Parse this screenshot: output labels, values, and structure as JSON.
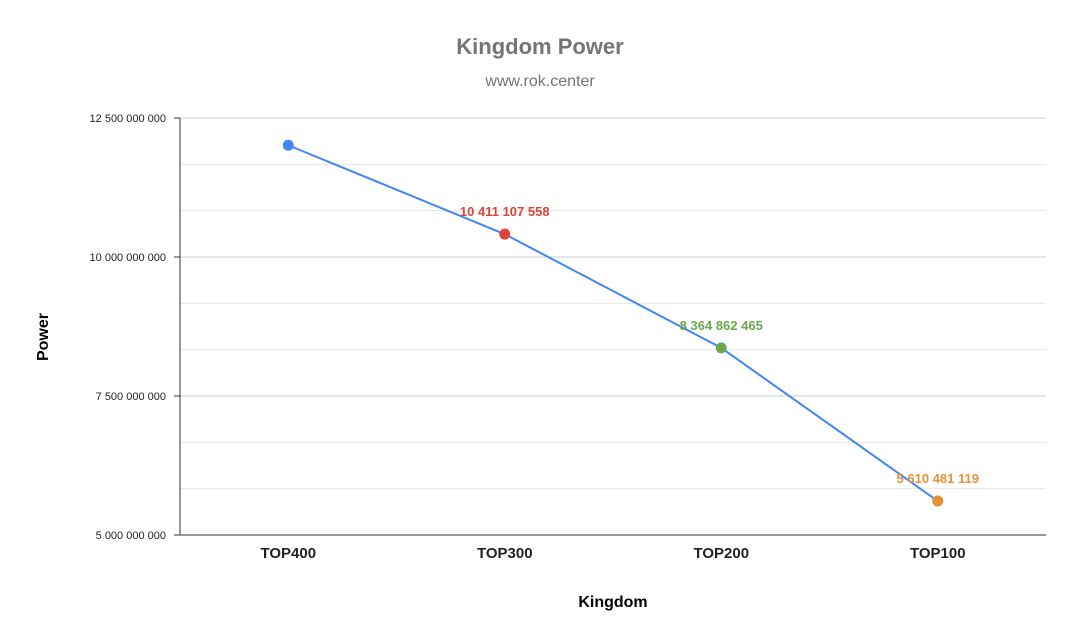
{
  "chart_data": {
    "type": "line",
    "title": "Kingdom Power",
    "subtitle": "www.rok.center",
    "xlabel": "Kingdom",
    "ylabel": "Power",
    "categories": [
      "TOP400",
      "TOP300",
      "TOP200",
      "TOP100"
    ],
    "series": [
      {
        "values": [
          12010000000,
          10411107558,
          8364862465,
          5610481119
        ],
        "line_color": "#4285f4",
        "point_colors": [
          "#4285f4",
          "#db4437",
          "#6aa84f",
          "#e69138"
        ],
        "data_labels": [
          "",
          "10 411 107 558",
          "8 364 862 465",
          "5 610 481 119"
        ]
      }
    ],
    "ylim": [
      5000000000,
      12500000000
    ],
    "y_ticks": [
      {
        "value": 5000000000,
        "label": "5 000 000 000"
      },
      {
        "value": 7500000000,
        "label": "7 500 000 000"
      },
      {
        "value": 10000000000,
        "label": "10 000 000 000"
      },
      {
        "value": 12500000000,
        "label": "12 500 000 000"
      }
    ],
    "minor_gridlines": [
      5833333333,
      6666666667,
      8333333333,
      9166666667,
      10833333333,
      11666666667
    ],
    "grid": true,
    "legend": "none",
    "colors": {
      "title": "#757575",
      "gridline": "#cccccc",
      "minor_gridline": "#e6e6e6",
      "axis": "#333333"
    }
  }
}
